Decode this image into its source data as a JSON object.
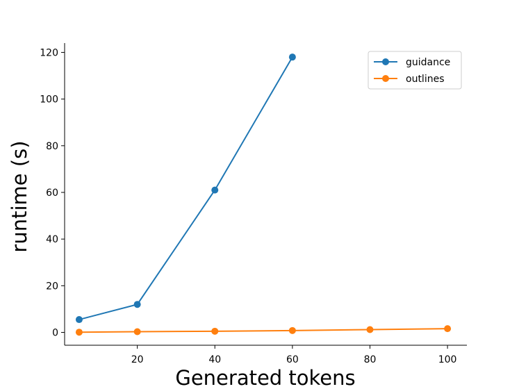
{
  "chart_data": {
    "type": "line",
    "title": "",
    "xlabel": "Generated tokens",
    "ylabel": "runtime (s)",
    "xlim": [
      1.25,
      105
    ],
    "ylim": [
      -5.5,
      124
    ],
    "xticks": [
      20,
      40,
      60,
      80,
      100
    ],
    "yticks": [
      0,
      20,
      40,
      60,
      80,
      100,
      120
    ],
    "grid": false,
    "legend_position": "top-right",
    "series": [
      {
        "name": "guidance",
        "color": "#1f77b4",
        "x": [
          5,
          20,
          40,
          60
        ],
        "y": [
          5.5,
          12,
          61,
          118
        ]
      },
      {
        "name": "outlines",
        "color": "#ff7f0e",
        "x": [
          5,
          20,
          40,
          60,
          80,
          100
        ],
        "y": [
          0.1,
          0.3,
          0.5,
          0.8,
          1.2,
          1.6
        ]
      }
    ]
  }
}
